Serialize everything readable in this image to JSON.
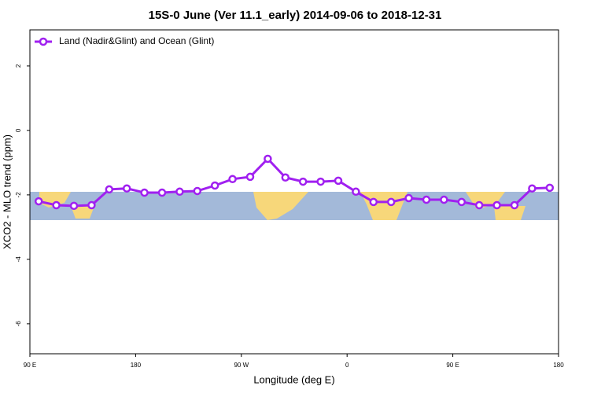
{
  "chart_data": {
    "type": "line",
    "title": "15S-0 June (Ver 11.1_early)   2014-09-06 to 2018-12-31",
    "x_label": "Longitude (deg E)",
    "y_label": "XCO2 - MLO trend (ppm)",
    "x": [
      97.5,
      112.5,
      127.5,
      142.5,
      157.5,
      172.5,
      187.5,
      202.5,
      217.5,
      232.5,
      247.5,
      262.5,
      277.5,
      292.5,
      307.5,
      322.5,
      337.5,
      352.5,
      367.5,
      382.5,
      397.5,
      412.5,
      427.5,
      442.5,
      457.5,
      472.5,
      487.5,
      502.5,
      517.5,
      532.5
    ],
    "series": [
      {
        "name": "Land (Nadir&Glint) and Ocean (Glint)",
        "color": "#a020f0",
        "values": [
          -2.2,
          -2.32,
          -2.34,
          -2.32,
          -1.83,
          -1.8,
          -1.93,
          -1.93,
          -1.9,
          -1.88,
          -1.71,
          -1.51,
          -1.44,
          -0.88,
          -1.46,
          -1.59,
          -1.59,
          -1.56,
          -1.9,
          -2.22,
          -2.22,
          -2.1,
          -2.15,
          -2.15,
          -2.22,
          -2.32,
          -2.32,
          -2.32,
          -1.8,
          -1.78
        ]
      }
    ],
    "xlim": [
      90,
      540
    ],
    "xticks": [
      {
        "value": 90,
        "label": "90 E"
      },
      {
        "value": 180,
        "label": "180"
      },
      {
        "value": 270,
        "label": "90 W"
      },
      {
        "value": 360,
        "label": "0"
      },
      {
        "value": 450,
        "label": "90 E"
      },
      {
        "value": 540,
        "label": "180"
      }
    ],
    "ylim": [
      -6.93,
      3.12
    ],
    "yticks": [
      -6,
      -4,
      -2,
      0,
      2
    ],
    "legend": "top-left"
  }
}
